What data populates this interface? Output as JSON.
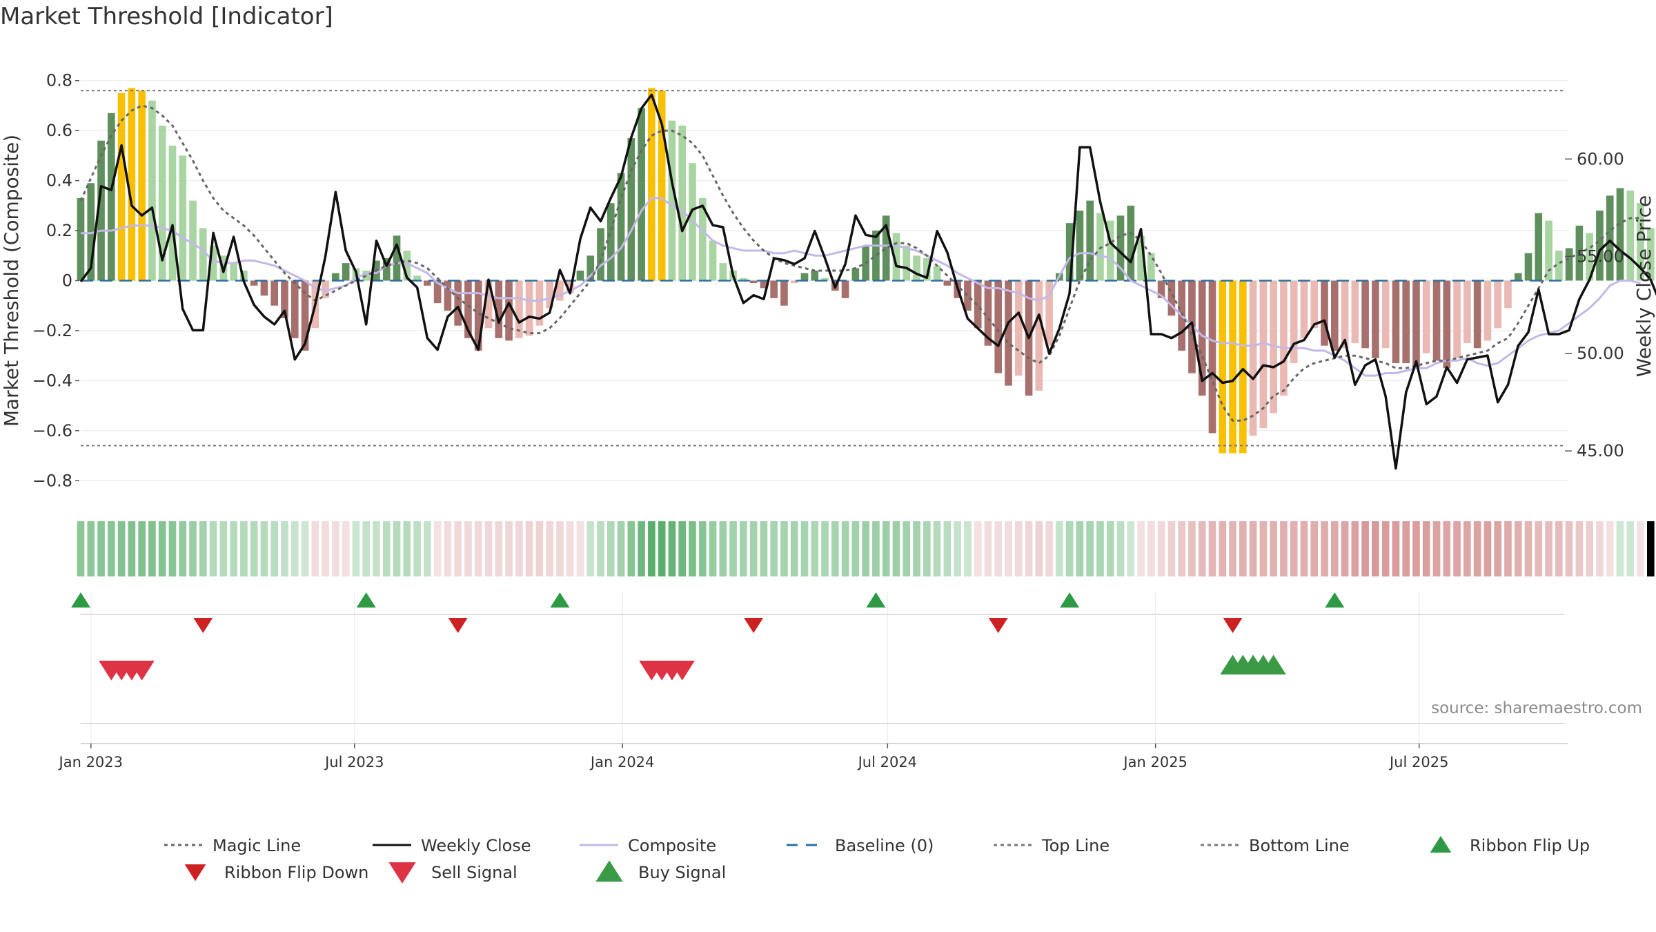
{
  "title": "Market Threshold [Indicator]",
  "source": "source: sharemaestro.com",
  "colors": {
    "strong_up": "#5e8f5c",
    "weak_up": "#a8d5a2",
    "strong_down": "#a8706d",
    "weak_down": "#eab9b3",
    "extreme": "#f8c000",
    "magic": "#666666",
    "close": "#111111",
    "composite": "#c4b8e8",
    "baseline": "#2e6f9e",
    "levels": "#777777",
    "flip_up": "#2e9a46",
    "flip_down": "#cc2222",
    "sell": "#dd3344",
    "buy": "#3a9a46"
  },
  "chart_data": {
    "type": "bar",
    "ylabel_left": "Market Threshold (Composite)",
    "ylabel_right": "Weekly Close Price",
    "y_ticks": [
      "0.8",
      "0.6",
      "0.4",
      "0.2",
      "0",
      "−0.2",
      "−0.4",
      "−0.6",
      "−0.8"
    ],
    "y_tick_values": [
      0.8,
      0.6,
      0.4,
      0.2,
      0,
      -0.2,
      -0.4,
      -0.6,
      -0.8
    ],
    "ylim": [
      -0.86,
      0.86
    ],
    "y2_ticks": [
      "60.00",
      "55.00",
      "50.00",
      "45.00"
    ],
    "y2_tick_values": [
      60,
      55,
      50,
      45
    ],
    "y2lim": [
      42.7,
      64.8
    ],
    "x_range": [
      "2022-12-25",
      "2025-10-11"
    ],
    "x_ticks": [
      "Jan 2023",
      "Jul 2023",
      "Jan 2024",
      "Jul 2024",
      "Jan 2025",
      "Jul 2025"
    ],
    "x_tick_dates": [
      "2023-01-01",
      "2023-07-01",
      "2024-01-01",
      "2024-07-01",
      "2025-01-01",
      "2025-07-01"
    ],
    "first_week": "2022-12-25",
    "top_line": 0.76,
    "bottom_line": -0.66,
    "baseline": 0,
    "composite_bars": [
      0.33,
      0.39,
      0.56,
      0.67,
      0.75,
      0.77,
      0.76,
      0.72,
      0.62,
      0.54,
      0.5,
      0.32,
      0.21,
      0.14,
      0.1,
      0.07,
      0.04,
      -0.02,
      -0.06,
      -0.1,
      -0.15,
      -0.23,
      -0.28,
      -0.19,
      -0.07,
      0.03,
      0.07,
      0.05,
      0.04,
      0.08,
      0.09,
      0.18,
      0.12,
      0.02,
      -0.02,
      -0.09,
      -0.12,
      -0.18,
      -0.23,
      -0.28,
      -0.19,
      -0.23,
      -0.24,
      -0.23,
      -0.22,
      -0.18,
      -0.11,
      -0.08,
      -0.05,
      0.04,
      0.1,
      0.21,
      0.31,
      0.43,
      0.57,
      0.69,
      0.77,
      0.76,
      0.64,
      0.62,
      0.47,
      0.33,
      0.16,
      0.07,
      0.04,
      0.01,
      -0.01,
      -0.03,
      -0.07,
      -0.1,
      -0.01,
      0.03,
      0.04,
      0.01,
      -0.04,
      -0.07,
      0.05,
      0.14,
      0.2,
      0.26,
      0.19,
      0.14,
      0.1,
      0.09,
      0.06,
      -0.02,
      -0.07,
      -0.12,
      -0.19,
      -0.26,
      -0.37,
      -0.42,
      -0.38,
      -0.46,
      -0.44,
      -0.26,
      0.03,
      0.23,
      0.28,
      0.32,
      0.27,
      0.24,
      0.26,
      0.3,
      0.18,
      0.11,
      -0.07,
      -0.14,
      -0.28,
      -0.37,
      -0.46,
      -0.61,
      -0.69,
      -0.69,
      -0.69,
      -0.62,
      -0.59,
      -0.53,
      -0.46,
      -0.33,
      -0.23,
      -0.19,
      -0.26,
      -0.28,
      -0.27,
      -0.25,
      -0.27,
      -0.31,
      -0.27,
      -0.33,
      -0.33,
      -0.35,
      -0.29,
      -0.32,
      -0.35,
      -0.31,
      -0.25,
      -0.27,
      -0.24,
      -0.19,
      -0.11,
      0.03,
      0.11,
      0.27,
      0.24,
      0.12,
      0.13,
      0.22,
      0.19,
      0.28,
      0.34,
      0.37,
      0.36,
      0.31,
      0.21
    ],
    "magic_line": [
      0.32,
      0.41,
      0.5,
      0.58,
      0.64,
      0.68,
      0.7,
      0.69,
      0.66,
      0.62,
      0.55,
      0.48,
      0.4,
      0.33,
      0.28,
      0.25,
      0.22,
      0.18,
      0.13,
      0.08,
      0.03,
      -0.01,
      -0.05,
      -0.08,
      -0.06,
      -0.04,
      -0.02,
      0.0,
      0.02,
      0.04,
      0.06,
      0.07,
      0.08,
      0.07,
      0.05,
      0.01,
      -0.03,
      -0.07,
      -0.1,
      -0.13,
      -0.15,
      -0.17,
      -0.19,
      -0.2,
      -0.21,
      -0.21,
      -0.19,
      -0.15,
      -0.1,
      -0.05,
      0.0,
      0.08,
      0.2,
      0.33,
      0.44,
      0.52,
      0.58,
      0.6,
      0.6,
      0.58,
      0.55,
      0.5,
      0.42,
      0.34,
      0.27,
      0.21,
      0.16,
      0.12,
      0.09,
      0.07,
      0.06,
      0.05,
      0.04,
      0.04,
      0.04,
      0.04,
      0.05,
      0.07,
      0.1,
      0.13,
      0.15,
      0.15,
      0.13,
      0.1,
      0.06,
      0.02,
      -0.02,
      -0.06,
      -0.1,
      -0.15,
      -0.2,
      -0.25,
      -0.28,
      -0.31,
      -0.33,
      -0.3,
      -0.22,
      -0.11,
      0.0,
      0.08,
      0.13,
      0.15,
      0.18,
      0.19,
      0.16,
      0.1,
      0.03,
      -0.05,
      -0.13,
      -0.22,
      -0.3,
      -0.4,
      -0.5,
      -0.56,
      -0.56,
      -0.54,
      -0.51,
      -0.46,
      -0.44,
      -0.39,
      -0.35,
      -0.33,
      -0.32,
      -0.31,
      -0.3,
      -0.3,
      -0.31,
      -0.32,
      -0.33,
      -0.35,
      -0.35,
      -0.34,
      -0.33,
      -0.32,
      -0.32,
      -0.31,
      -0.3,
      -0.29,
      -0.28,
      -0.25,
      -0.23,
      -0.17,
      -0.1,
      -0.03,
      0.04,
      0.07,
      0.09,
      0.11,
      0.13,
      0.16,
      0.2,
      0.23,
      0.25,
      0.25
    ],
    "composite_line": [
      0.19,
      0.19,
      0.2,
      0.2,
      0.21,
      0.22,
      0.22,
      0.22,
      0.21,
      0.2,
      0.17,
      0.15,
      0.12,
      0.08,
      0.07,
      0.07,
      0.08,
      0.08,
      0.07,
      0.06,
      0.04,
      0.02,
      0.0,
      -0.03,
      -0.04,
      -0.03,
      -0.02,
      0.01,
      0.03,
      0.03,
      0.06,
      0.07,
      0.07,
      0.05,
      0.03,
      -0.01,
      -0.03,
      -0.05,
      -0.05,
      -0.05,
      -0.06,
      -0.07,
      -0.07,
      -0.07,
      -0.08,
      -0.08,
      -0.07,
      -0.06,
      -0.04,
      -0.02,
      0.02,
      0.06,
      0.09,
      0.13,
      0.2,
      0.28,
      0.33,
      0.33,
      0.3,
      0.28,
      0.24,
      0.2,
      0.16,
      0.14,
      0.13,
      0.12,
      0.12,
      0.12,
      0.11,
      0.11,
      0.12,
      0.11,
      0.1,
      0.1,
      0.11,
      0.12,
      0.13,
      0.14,
      0.14,
      0.14,
      0.14,
      0.13,
      0.12,
      0.1,
      0.08,
      0.06,
      0.03,
      0.01,
      -0.01,
      -0.03,
      -0.03,
      -0.04,
      -0.05,
      -0.07,
      -0.08,
      -0.06,
      0.02,
      0.09,
      0.11,
      0.11,
      0.1,
      0.09,
      0.05,
      0.0,
      -0.02,
      -0.04,
      -0.06,
      -0.1,
      -0.14,
      -0.18,
      -0.22,
      -0.24,
      -0.25,
      -0.25,
      -0.26,
      -0.26,
      -0.25,
      -0.26,
      -0.27,
      -0.27,
      -0.27,
      -0.28,
      -0.28,
      -0.3,
      -0.32,
      -0.35,
      -0.38,
      -0.38,
      -0.37,
      -0.37,
      -0.36,
      -0.35,
      -0.35,
      -0.33,
      -0.32,
      -0.32,
      -0.31,
      -0.33,
      -0.34,
      -0.33,
      -0.3,
      -0.27,
      -0.24,
      -0.22,
      -0.21,
      -0.2,
      -0.17,
      -0.14,
      -0.11,
      -0.07,
      -0.02,
      0.0,
      0.0,
      -0.01
    ],
    "weekly_close": [
      53.7,
      54.4,
      58.6,
      58.4,
      60.7,
      57.6,
      57.1,
      57.5,
      54.8,
      56.6,
      52.3,
      51.2,
      51.2,
      56.2,
      54.2,
      56.0,
      53.7,
      52.5,
      51.9,
      51.5,
      52.2,
      49.7,
      50.5,
      52.5,
      55.0,
      58.3,
      55.3,
      54.2,
      51.5,
      55.8,
      54.5,
      55.6,
      53.9,
      53.4,
      50.8,
      50.2,
      51.9,
      52.4,
      51.2,
      50.2,
      53.8,
      51.6,
      52.6,
      51.6,
      51.9,
      51.8,
      52.1,
      54.3,
      53.1,
      55.9,
      57.5,
      56.8,
      58.0,
      59.1,
      61.1,
      62.6,
      63.3,
      61.8,
      58.8,
      56.3,
      57.4,
      57.6,
      56.6,
      56.5,
      54.0,
      52.6,
      53.0,
      52.8,
      54.9,
      54.8,
      54.6,
      54.9,
      56.3,
      54.9,
      53.4,
      54.6,
      57.1,
      56.1,
      56.0,
      56.6,
      54.5,
      54.4,
      54.1,
      53.9,
      56.3,
      55.2,
      53.4,
      51.8,
      51.3,
      50.8,
      50.4,
      51.6,
      52.1,
      50.8,
      52.0,
      50.0,
      51.3,
      53.1,
      60.6,
      60.6,
      57.8,
      55.7,
      55.2,
      54.7,
      56.4,
      51.0,
      51.0,
      50.8,
      51.1,
      51.6,
      48.6,
      49.0,
      48.5,
      48.6,
      49.2,
      48.7,
      49.4,
      49.3,
      49.6,
      50.5,
      50.7,
      51.5,
      51.7,
      49.8,
      50.7,
      48.4,
      49.4,
      49.7,
      47.8,
      44.1,
      48.0,
      49.6,
      47.4,
      47.8,
      49.3,
      48.5,
      49.7,
      49.8,
      49.9,
      47.5,
      48.4,
      50.4,
      51.1,
      53.3,
      51.0,
      51.0,
      51.2,
      52.8,
      53.8,
      55.3,
      55.8,
      55.3,
      54.9,
      54.4,
      53.8,
      52.5
    ],
    "ribbon_flip_up_weeks": [
      0,
      28,
      47,
      78,
      97,
      123
    ],
    "ribbon_flip_down_weeks": [
      12,
      37,
      66,
      90,
      113
    ],
    "sell_signal_weeks": [
      3,
      4,
      5,
      6,
      56,
      57,
      58,
      59
    ],
    "buy_signal_weeks": [
      113,
      114,
      115,
      116,
      117
    ],
    "legend": [
      {
        "key": "magic",
        "label": "Magic Line",
        "kind": "dotted-line"
      },
      {
        "key": "close",
        "label": "Weekly Close",
        "kind": "solid-line"
      },
      {
        "key": "composite",
        "label": "Composite",
        "kind": "solid-line"
      },
      {
        "key": "baseline",
        "label": "Baseline (0)",
        "kind": "dashed-line"
      },
      {
        "key": "levels",
        "label": "Top Line",
        "kind": "dotted-line"
      },
      {
        "key": "levels",
        "label": "Bottom Line",
        "kind": "dotted-line"
      },
      {
        "key": "flip_up",
        "label": "Ribbon Flip Up",
        "kind": "triangle-up-small"
      },
      {
        "key": "flip_down",
        "label": "Ribbon Flip Down",
        "kind": "triangle-down-small"
      },
      {
        "key": "sell",
        "label": "Sell Signal",
        "kind": "triangle-down"
      },
      {
        "key": "buy",
        "label": "Buy Signal",
        "kind": "triangle-up"
      }
    ]
  }
}
